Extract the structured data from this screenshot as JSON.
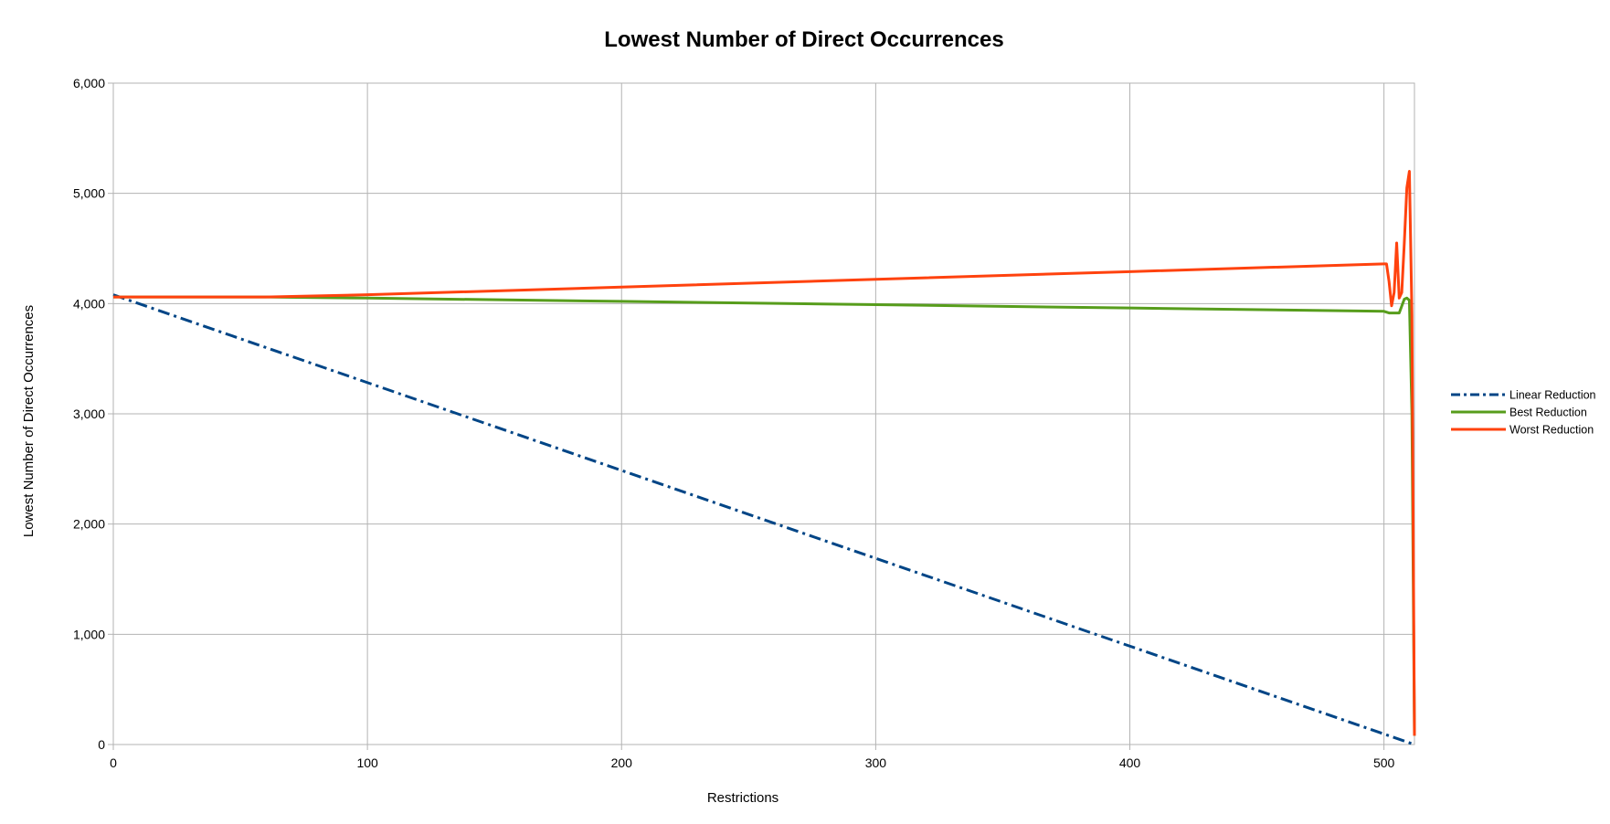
{
  "chart_data": {
    "type": "line",
    "title": "Lowest Number of Direct Occurrences",
    "xlabel": "Restrictions",
    "ylabel": "Lowest Number of Direct Occurrences",
    "xlim": [
      0,
      512
    ],
    "ylim": [
      0,
      6000
    ],
    "xticks": [
      0,
      100,
      200,
      300,
      400,
      500
    ],
    "xtick_labels": [
      "0",
      "100",
      "200",
      "300",
      "400",
      "500"
    ],
    "yticks": [
      0,
      1000,
      2000,
      3000,
      4000,
      5000,
      6000
    ],
    "ytick_labels": [
      "0",
      "1,000",
      "2,000",
      "3,000",
      "4,000",
      "5,000",
      "6,000"
    ],
    "grid": true,
    "legend_position": "right",
    "series": [
      {
        "name": "Linear Reduction",
        "color": "#004586",
        "style": "dash-dot",
        "x": [
          0,
          512
        ],
        "y": [
          4080,
          0
        ]
      },
      {
        "name": "Best Reduction",
        "color": "#579d1c",
        "style": "solid",
        "x": [
          0,
          60,
          100,
          200,
          300,
          400,
          500,
          502,
          504,
          506,
          508,
          509,
          510,
          511,
          512
        ],
        "y": [
          4060,
          4060,
          4050,
          4020,
          3990,
          3960,
          3930,
          3915,
          3915,
          3915,
          4040,
          4050,
          4030,
          3000,
          80
        ]
      },
      {
        "name": "Worst Reduction",
        "color": "#ff420e",
        "style": "solid",
        "x": [
          0,
          60,
          100,
          200,
          300,
          400,
          500,
          501,
          502,
          503,
          504,
          505,
          506,
          507,
          508,
          509,
          510,
          511,
          512
        ],
        "y": [
          4060,
          4060,
          4080,
          4150,
          4220,
          4290,
          4360,
          4360,
          4200,
          3980,
          4100,
          4550,
          4050,
          4100,
          4550,
          5050,
          5200,
          3900,
          80
        ]
      }
    ]
  }
}
